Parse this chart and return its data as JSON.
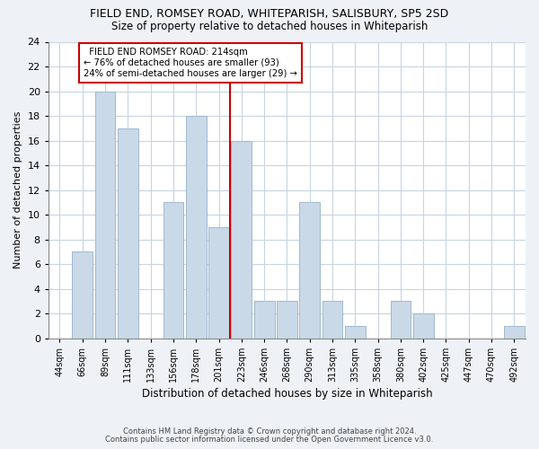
{
  "title1": "FIELD END, ROMSEY ROAD, WHITEPARISH, SALISBURY, SP5 2SD",
  "title2": "Size of property relative to detached houses in Whiteparish",
  "xlabel": "Distribution of detached houses by size in Whiteparish",
  "ylabel": "Number of detached properties",
  "categories": [
    "44sqm",
    "66sqm",
    "89sqm",
    "111sqm",
    "133sqm",
    "156sqm",
    "178sqm",
    "201sqm",
    "223sqm",
    "246sqm",
    "268sqm",
    "290sqm",
    "313sqm",
    "335sqm",
    "358sqm",
    "380sqm",
    "402sqm",
    "425sqm",
    "447sqm",
    "470sqm",
    "492sqm"
  ],
  "values": [
    0,
    7,
    20,
    17,
    0,
    11,
    18,
    9,
    16,
    3,
    3,
    11,
    3,
    1,
    0,
    3,
    2,
    0,
    0,
    0,
    1
  ],
  "bar_color": "#c9d9e8",
  "bar_edge_color": "#a0b8cc",
  "vline_color": "#cc0000",
  "vline_x": 8,
  "annotation_text": "  FIELD END ROMSEY ROAD: 214sqm  \n← 76% of detached houses are smaller (93)\n24% of semi-detached houses are larger (29) →",
  "annotation_box_color": "#ffffff",
  "annotation_box_edge_color": "#cc0000",
  "ylim": [
    0,
    24
  ],
  "yticks": [
    0,
    2,
    4,
    6,
    8,
    10,
    12,
    14,
    16,
    18,
    20,
    22,
    24
  ],
  "footnote1": "Contains HM Land Registry data © Crown copyright and database right 2024.",
  "footnote2": "Contains public sector information licensed under the Open Government Licence v3.0.",
  "bg_color": "#eef2f7",
  "plot_bg_color": "#ffffff",
  "grid_color": "#c8d4e0"
}
